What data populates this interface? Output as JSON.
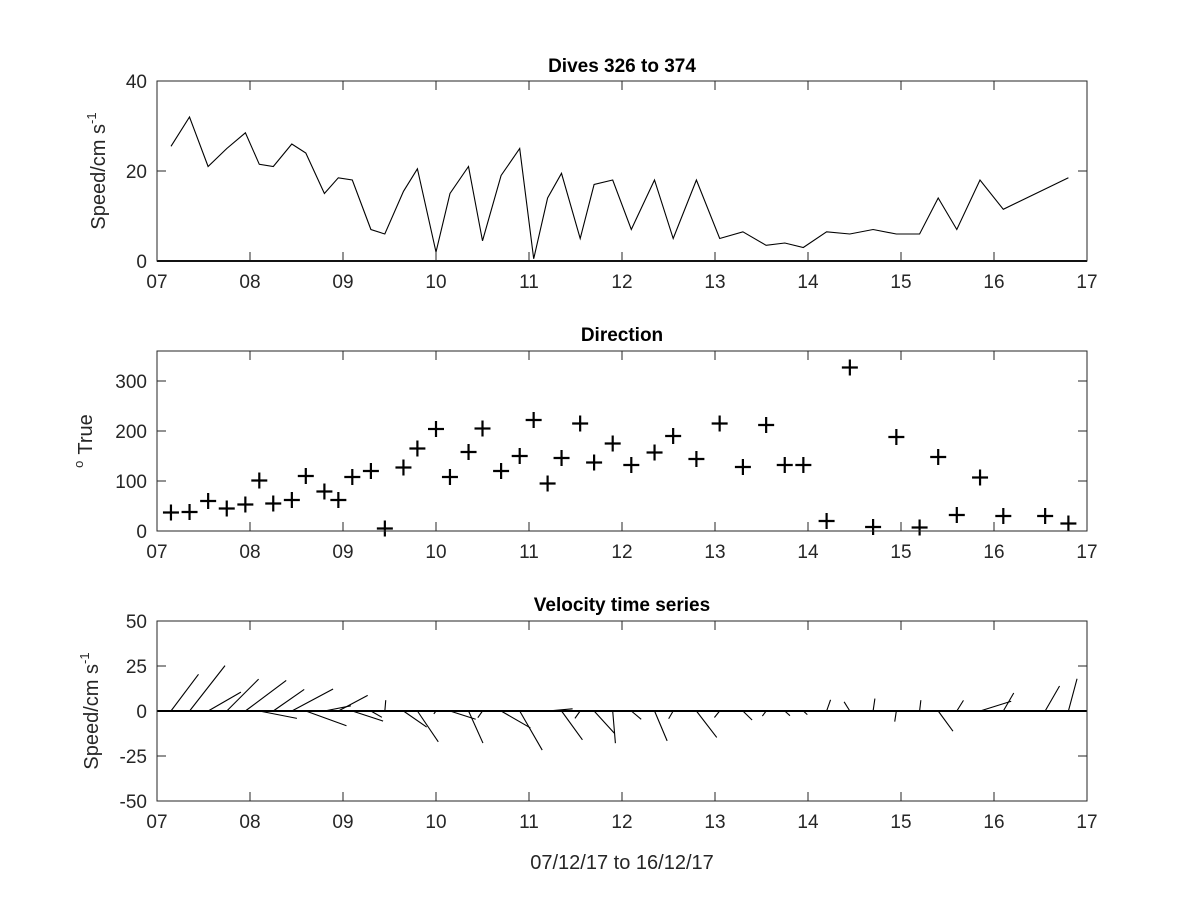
{
  "chart_data": [
    {
      "type": "line",
      "title": "Dives 326 to 374",
      "ylabel": {
        "base": "Speed/cm s",
        "sup": "-1"
      },
      "xlabel": "",
      "xlim": [
        7,
        17
      ],
      "ylim": [
        0,
        40
      ],
      "xticks": [
        7,
        8,
        9,
        10,
        11,
        12,
        13,
        14,
        15,
        16,
        17
      ],
      "xtick_labels": [
        "07",
        "08",
        "09",
        "10",
        "11",
        "12",
        "13",
        "14",
        "15",
        "16",
        "17"
      ],
      "yticks": [
        0,
        20,
        40
      ],
      "ytick_labels": [
        "0",
        "20",
        "40"
      ],
      "series": [
        {
          "x": [
            7.15,
            7.35,
            7.55,
            7.75,
            7.95,
            8.1,
            8.25,
            8.45,
            8.6,
            8.8,
            8.95,
            9.1,
            9.3,
            9.45,
            9.65,
            9.8,
            10.0,
            10.15,
            10.35,
            10.5,
            10.7,
            10.9,
            11.05,
            11.2,
            11.35,
            11.55,
            11.7,
            11.9,
            12.1,
            12.35,
            12.55,
            12.8,
            13.05,
            13.3,
            13.55,
            13.75,
            13.95,
            14.2,
            14.45,
            14.7,
            14.95,
            15.2,
            15.4,
            15.6,
            15.85,
            16.1,
            16.55,
            16.8
          ],
          "values": [
            25.5,
            32,
            21,
            25,
            28.5,
            21.5,
            21,
            26,
            24,
            15,
            18.5,
            18,
            7,
            6,
            15.5,
            20.5,
            2,
            15,
            21,
            4.5,
            19,
            25,
            0.5,
            14,
            19.5,
            5,
            17,
            18,
            7,
            18,
            5,
            18,
            5,
            6.5,
            3.5,
            4,
            3,
            6.5,
            6,
            7,
            6,
            6,
            14,
            7,
            18,
            11.5,
            16,
            18.5
          ]
        }
      ]
    },
    {
      "type": "scatter",
      "title": "Direction",
      "ylabel": {
        "base": "True",
        "sup": "o"
      },
      "xlabel": "",
      "xlim": [
        7,
        17
      ],
      "ylim": [
        0,
        360
      ],
      "xticks": [
        7,
        8,
        9,
        10,
        11,
        12,
        13,
        14,
        15,
        16,
        17
      ],
      "xtick_labels": [
        "07",
        "08",
        "09",
        "10",
        "11",
        "12",
        "13",
        "14",
        "15",
        "16",
        "17"
      ],
      "yticks": [
        0,
        100,
        200,
        300
      ],
      "ytick_labels": [
        "0",
        "100",
        "200",
        "300"
      ],
      "series": [
        {
          "x": [
            7.15,
            7.35,
            7.55,
            7.75,
            7.95,
            8.1,
            8.25,
            8.45,
            8.6,
            8.8,
            8.95,
            9.1,
            9.3,
            9.45,
            9.65,
            9.8,
            10.0,
            10.15,
            10.35,
            10.5,
            10.7,
            10.9,
            11.05,
            11.2,
            11.35,
            11.55,
            11.7,
            11.9,
            12.1,
            12.35,
            12.55,
            12.8,
            13.05,
            13.3,
            13.55,
            13.75,
            13.95,
            14.2,
            14.45,
            14.7,
            14.95,
            15.2,
            15.4,
            15.6,
            15.85,
            16.1,
            16.55,
            16.8
          ],
          "values": [
            37,
            38,
            60,
            45,
            53,
            101,
            55,
            62,
            110,
            79,
            62,
            108,
            120,
            5,
            127,
            165,
            204,
            108,
            158,
            205,
            120,
            150,
            222,
            95,
            146,
            215,
            137,
            175,
            132,
            157,
            190,
            144,
            215,
            128,
            212,
            132,
            132,
            20,
            327,
            8,
            188,
            7,
            148,
            32,
            107,
            30,
            30,
            15
          ]
        }
      ]
    },
    {
      "type": "stick",
      "title": "Velocity time series",
      "ylabel": {
        "base": "Speed/cm s",
        "sup": "-1"
      },
      "xlabel": "07/12/17 to 16/12/17",
      "xlim": [
        7,
        17
      ],
      "ylim": [
        -50,
        50
      ],
      "xticks": [
        7,
        8,
        9,
        10,
        11,
        12,
        13,
        14,
        15,
        16,
        17
      ],
      "xtick_labels": [
        "07",
        "08",
        "09",
        "10",
        "11",
        "12",
        "13",
        "14",
        "15",
        "16",
        "17"
      ],
      "yticks": [
        -50,
        -25,
        0,
        25,
        50
      ],
      "ytick_labels": [
        "-50",
        "-25",
        "0",
        "25",
        "50"
      ],
      "note_units": "each stick: origin at day x, u = east component (cm/s) along x, v = north component (cm/s) along y",
      "series": [
        {
          "x": [
            7.15,
            7.35,
            7.55,
            7.75,
            7.95,
            8.1,
            8.25,
            8.45,
            8.6,
            8.8,
            8.95,
            9.1,
            9.3,
            9.45,
            9.65,
            9.8,
            10.0,
            10.15,
            10.35,
            10.5,
            10.7,
            10.9,
            11.05,
            11.2,
            11.35,
            11.55,
            11.7,
            11.9,
            12.1,
            12.35,
            12.55,
            12.8,
            13.05,
            13.3,
            13.55,
            13.75,
            13.95,
            14.2,
            14.45,
            14.7,
            14.95,
            15.2,
            15.4,
            15.6,
            15.85,
            16.1,
            16.55,
            16.8
          ],
          "u": [
            15.3,
            19.7,
            18.2,
            17.7,
            22.7,
            20.9,
            17.2,
            22.9,
            22.6,
            14.7,
            16.3,
            17.1,
            6.1,
            0.5,
            12.9,
            11.6,
            -1.2,
            14.3,
            8.0,
            -2.6,
            16.3,
            12.5,
            -0.3,
            13.9,
            11.6,
            -2.9,
            11.4,
            1.5,
            5.5,
            7.0,
            -2.5,
            11.3,
            -2.9,
            5.1,
            -2.1,
            2.9,
            2.2,
            2.2,
            -3.2,
            1.0,
            -0.9,
            0.7,
            8.2,
            3.7,
            17.3,
            5.8,
            8.0,
            4.8
          ],
          "v": [
            20.4,
            25.2,
            10.5,
            17.7,
            17.0,
            -4.1,
            12.0,
            12.2,
            -8.2,
            2.9,
            8.7,
            -5.6,
            -3.5,
            6.0,
            -8.9,
            -17.1,
            -1.6,
            -4.6,
            -17.8,
            -3.7,
            -9.4,
            -21.7,
            -0.4,
            1.2,
            -16.0,
            -4.1,
            -12.5,
            -17.9,
            -4.6,
            -16.6,
            -4.3,
            -14.7,
            -3.6,
            -5.0,
            -2.8,
            -2.6,
            -2.0,
            6.2,
            5.1,
            6.9,
            -5.9,
            6.0,
            -11.2,
            5.9,
            5.4,
            10.0,
            13.9,
            17.9
          ]
        }
      ]
    }
  ]
}
